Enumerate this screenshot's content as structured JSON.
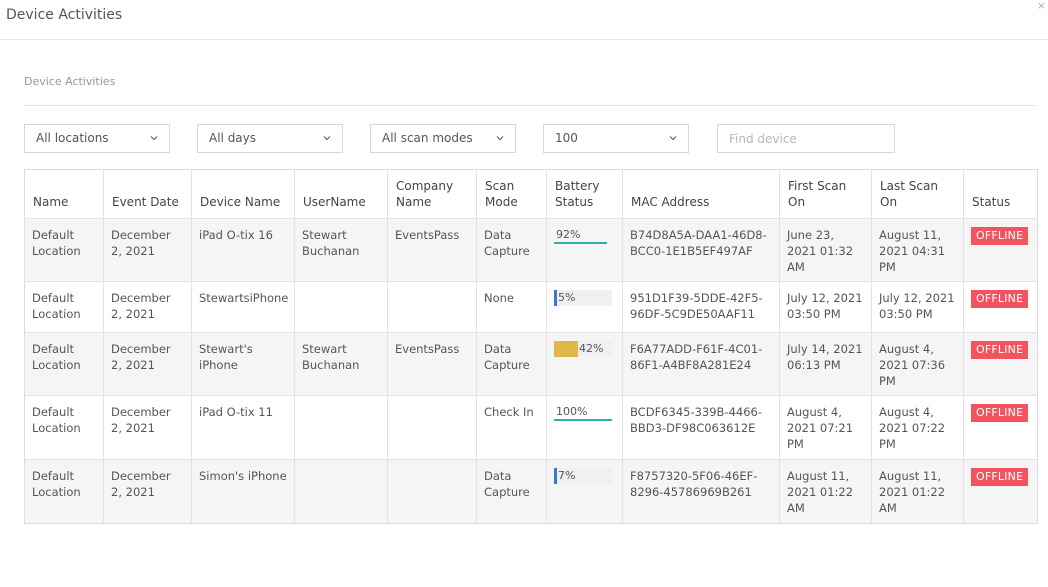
{
  "window": {
    "title": "Device Activities"
  },
  "section": {
    "title": "Device Activities"
  },
  "filters": {
    "location": "All locations",
    "days": "All days",
    "scan_mode": "All scan modes",
    "page_size": "100",
    "search_placeholder": "Find device"
  },
  "table": {
    "headers": {
      "name": "Name",
      "event_date": "Event Date",
      "device_name": "Device Name",
      "username": "UserName",
      "company_name": "Company Name",
      "scan_mode": "Scan Mode",
      "battery_status": "Battery Status",
      "mac_address": "MAC Address",
      "first_scan_on": "First Scan On",
      "last_scan_on": "Last Scan On",
      "status": "Status"
    },
    "rows": [
      {
        "name": "Default Location",
        "event_date": "December 2, 2021",
        "device_name": "iPad O-tix 16",
        "username": "Stewart Buchanan",
        "company_name": "EventsPass",
        "scan_mode": "Data Capture",
        "battery_label": "92%",
        "battery_level": 0.92,
        "mac_address": "B74D8A5A-DAA1-46D8-BCC0-1E1B5EF497AF",
        "first_scan_on": "June 23, 2021 01:32 AM",
        "last_scan_on": "August 11, 2021 04:31 PM",
        "status": "OFFLINE"
      },
      {
        "name": "Default Location",
        "event_date": "December 2, 2021",
        "device_name": "StewartsiPhone",
        "username": "",
        "company_name": "",
        "scan_mode": "None",
        "battery_label": "5%",
        "battery_level": 0.05,
        "mac_address": "951D1F39-5DDE-42F5-96DF-5C9DE50AAF11",
        "first_scan_on": "July 12, 2021 03:50 PM",
        "last_scan_on": "July 12, 2021 03:50 PM",
        "status": "OFFLINE"
      },
      {
        "name": "Default Location",
        "event_date": "December 2, 2021",
        "device_name": "Stewart's iPhone",
        "username": "Stewart Buchanan",
        "company_name": "EventsPass",
        "scan_mode": "Data Capture",
        "battery_label": "42%",
        "battery_level": 0.42,
        "mac_address": "F6A77ADD-F61F-4C01-86F1-A4BF8A281E24",
        "first_scan_on": "July 14, 2021 06:13 PM",
        "last_scan_on": "August 4, 2021 07:36 PM",
        "status": "OFFLINE"
      },
      {
        "name": "Default Location",
        "event_date": "December 2, 2021",
        "device_name": "iPad O-tix 11",
        "username": "",
        "company_name": "",
        "scan_mode": "Check In",
        "battery_label": "100%",
        "battery_level": 1.0,
        "mac_address": "BCDF6345-339B-4466-BBD3-DF98C063612E",
        "first_scan_on": "August 4, 2021 07:21 PM",
        "last_scan_on": "August 4, 2021 07:22 PM",
        "status": "OFFLINE"
      },
      {
        "name": "Default Location",
        "event_date": "December 2, 2021",
        "device_name": "Simon's iPhone",
        "username": "",
        "company_name": "",
        "scan_mode": "Data Capture",
        "battery_label": "7%",
        "battery_level": 0.07,
        "mac_address": "F8757320-5F06-46EF-8296-45786969B261",
        "first_scan_on": "August 11, 2021 01:22 AM",
        "last_scan_on": "August 11, 2021 01:22 AM",
        "status": "OFFLINE"
      }
    ]
  },
  "colors": {
    "battery_high": "#2bb3a6",
    "battery_mid": "#e0b84a",
    "battery_low": "#3a7bc8",
    "offline_badge": "#f1545f"
  },
  "icons": {
    "dropdown": "chevron-down-icon",
    "close": "close-icon"
  }
}
